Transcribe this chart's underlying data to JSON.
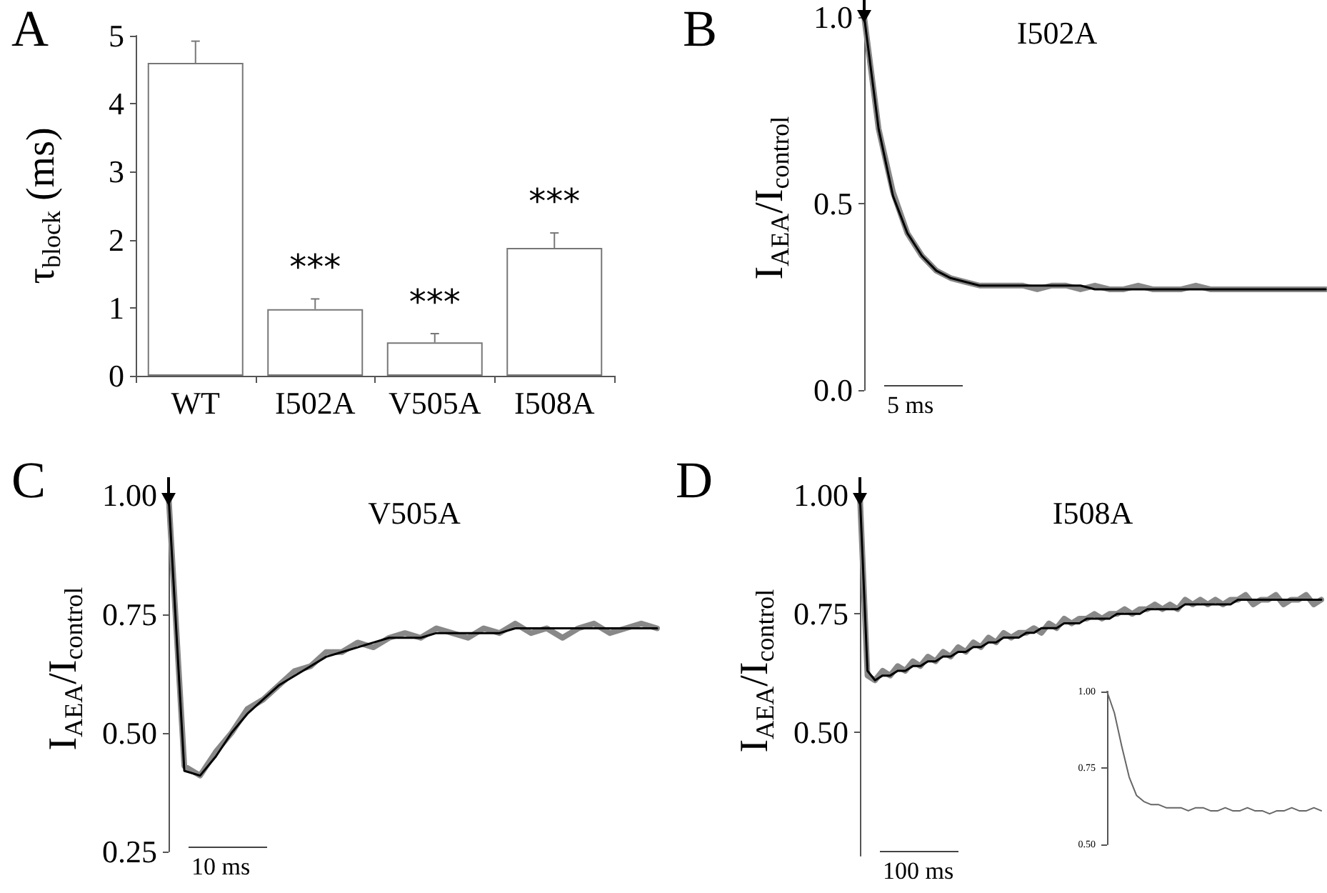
{
  "chart_data": [
    {
      "type": "bar",
      "ylabel": "τ$_{block}$ (ms)",
      "categories": [
        "WT",
        "I502A",
        "V505A",
        "I508A"
      ],
      "values": [
        4.6,
        0.98,
        0.49,
        1.88
      ],
      "colors": [
        "#ffffff",
        "#ffffff",
        "#ffffff",
        "#ffffff"
      ],
      "errors": [
        [
          4.6,
          4.92
        ],
        [
          0.98,
          1.13
        ],
        [
          0.49,
          0.62
        ],
        [
          1.88,
          2.1
        ]
      ],
      "ylim": [
        0,
        5
      ],
      "yticks": [
        0,
        1,
        2,
        3,
        4,
        5
      ],
      "annotations": [
        "A",
        "***",
        "***",
        "***"
      ]
    },
    {
      "type": "line",
      "title": "I502A",
      "ylabel": "I$_{AEA}$/I$_{control}$",
      "marker": "none",
      "tick_labels": "y",
      "categories": [
        null,
        null,
        null,
        null,
        null,
        null,
        null,
        null,
        null,
        null,
        null,
        null,
        null,
        null,
        null,
        null,
        null,
        null,
        null,
        null,
        null,
        null,
        null,
        null,
        null,
        null,
        null,
        null,
        null,
        null,
        null,
        null,
        null
      ],
      "series": [
        {
          "color": "#888888",
          "values": [
            1.0,
            0.7,
            0.53,
            0.42,
            0.36,
            0.32,
            0.3,
            0.29,
            0.28,
            0.28,
            0.28,
            0.28,
            0.27,
            0.28,
            0.28,
            0.27,
            0.28,
            0.27,
            0.27,
            0.28,
            0.27,
            0.27,
            0.27,
            0.28,
            0.27,
            0.27,
            0.27,
            0.27,
            0.27,
            0.27,
            0.27,
            0.27,
            0.27
          ]
        },
        {
          "color": "#000000",
          "values": [
            1.0,
            0.7,
            0.52,
            0.42,
            0.36,
            0.32,
            0.3,
            0.29,
            0.28,
            0.28,
            0.28,
            0.28,
            0.28,
            0.28,
            0.28,
            0.28,
            0.27,
            0.27,
            0.27,
            0.27,
            0.27,
            0.27,
            0.27,
            0.27,
            0.27,
            0.27,
            0.27,
            0.27,
            0.27,
            0.27,
            0.27,
            0.27,
            0.27
          ]
        }
      ],
      "ylim": [
        0,
        1.03
      ],
      "yticks": [
        {
          "value": 0,
          "label": "0.0"
        },
        {
          "value": 0.5,
          "label": "0.5"
        },
        {
          "value": 1,
          "label": "1.0"
        }
      ],
      "annotations": [
        "B",
        "5 ms"
      ]
    },
    {
      "type": "line",
      "title": "V505A",
      "ylabel": "I$_{AEA}$/I$_{control}$",
      "marker": "none",
      "tick_labels": "y",
      "categories": [
        null,
        null,
        null,
        null,
        null,
        null,
        null,
        null,
        null,
        null,
        null,
        null,
        null,
        null,
        null,
        null,
        null,
        null,
        null,
        null,
        null,
        null,
        null,
        null,
        null,
        null,
        null,
        null,
        null,
        null,
        null,
        null
      ],
      "series": [
        {
          "color": "#888888",
          "values": [
            1.0,
            0.43,
            0.41,
            0.46,
            0.5,
            0.55,
            0.57,
            0.6,
            0.63,
            0.64,
            0.67,
            0.67,
            0.69,
            0.68,
            0.7,
            0.71,
            0.7,
            0.72,
            0.71,
            0.7,
            0.72,
            0.71,
            0.73,
            0.71,
            0.72,
            0.7,
            0.72,
            0.73,
            0.71,
            0.72,
            0.73,
            0.72
          ]
        },
        {
          "color": "#000000",
          "values": [
            1.0,
            0.42,
            0.41,
            0.45,
            0.5,
            0.54,
            0.57,
            0.6,
            0.62,
            0.64,
            0.66,
            0.67,
            0.68,
            0.69,
            0.7,
            0.7,
            0.7,
            0.71,
            0.71,
            0.71,
            0.71,
            0.71,
            0.72,
            0.72,
            0.72,
            0.72,
            0.72,
            0.72,
            0.72,
            0.72,
            0.72,
            0.72
          ]
        }
      ],
      "ylim": [
        0.25,
        1.02
      ],
      "yticks": [
        {
          "value": 0.25,
          "label": "0.25"
        },
        {
          "value": 0.5,
          "label": "0.50"
        },
        {
          "value": 0.75,
          "label": "0.75"
        },
        {
          "value": 1,
          "label": "1.00"
        }
      ],
      "annotations": [
        "C",
        "10 ms"
      ]
    },
    {
      "type": "line",
      "title": "I508A",
      "ylabel": "I$_{AEA}$/I$_{control}$",
      "marker": "none",
      "tick_labels": "y",
      "categories": [
        null,
        null,
        null,
        null,
        null,
        null,
        null,
        null,
        null,
        null,
        null,
        null,
        null,
        null,
        null,
        null,
        null,
        null,
        null,
        null,
        null,
        null,
        null,
        null,
        null,
        null,
        null,
        null,
        null,
        null,
        null,
        null,
        null,
        null,
        null,
        null,
        null,
        null,
        null,
        null,
        null,
        null,
        null,
        null,
        null,
        null,
        null,
        null,
        null,
        null,
        null,
        null,
        null,
        null,
        null,
        null,
        null,
        null,
        null,
        null,
        null,
        null
      ],
      "series": [
        {
          "color": "#888888",
          "values": [
            1.0,
            0.62,
            0.61,
            0.63,
            0.62,
            0.64,
            0.63,
            0.65,
            0.64,
            0.66,
            0.65,
            0.67,
            0.66,
            0.68,
            0.67,
            0.69,
            0.68,
            0.7,
            0.69,
            0.71,
            0.7,
            0.71,
            0.71,
            0.72,
            0.71,
            0.73,
            0.72,
            0.74,
            0.73,
            0.74,
            0.74,
            0.75,
            0.74,
            0.75,
            0.75,
            0.76,
            0.75,
            0.76,
            0.76,
            0.77,
            0.76,
            0.77,
            0.76,
            0.78,
            0.77,
            0.78,
            0.77,
            0.78,
            0.77,
            0.78,
            0.78,
            0.79,
            0.77,
            0.78,
            0.78,
            0.79,
            0.77,
            0.78,
            0.78,
            0.79,
            0.77,
            0.78
          ]
        },
        {
          "color": "#000000",
          "values": [
            1.0,
            0.63,
            0.61,
            0.62,
            0.62,
            0.63,
            0.63,
            0.64,
            0.64,
            0.65,
            0.65,
            0.66,
            0.66,
            0.67,
            0.67,
            0.68,
            0.68,
            0.69,
            0.69,
            0.7,
            0.7,
            0.7,
            0.71,
            0.71,
            0.72,
            0.72,
            0.72,
            0.73,
            0.73,
            0.73,
            0.74,
            0.74,
            0.74,
            0.74,
            0.75,
            0.75,
            0.75,
            0.75,
            0.76,
            0.76,
            0.76,
            0.76,
            0.76,
            0.77,
            0.77,
            0.77,
            0.77,
            0.77,
            0.77,
            0.77,
            0.78,
            0.78,
            0.78,
            0.78,
            0.78,
            0.78,
            0.78,
            0.78,
            0.78,
            0.78,
            0.78,
            0.78
          ]
        }
      ],
      "ylim": [
        0.24,
        1.02
      ],
      "yticks": [
        {
          "value": 0.5,
          "label": "0.50"
        },
        {
          "value": 0.75,
          "label": "0.75"
        },
        {
          "value": 1,
          "label": "1.00"
        }
      ],
      "annotations": [
        "D",
        "100 ms"
      ]
    },
    {
      "type": "line",
      "marker": "none",
      "tick_labels": "y",
      "categories": [
        null,
        null,
        null,
        null,
        null,
        null,
        null,
        null,
        null,
        null,
        null,
        null,
        null,
        null,
        null,
        null,
        null,
        null,
        null,
        null,
        null,
        null,
        null,
        null,
        null,
        null,
        null,
        null,
        null,
        null
      ],
      "series": [
        {
          "color": "#666666",
          "values": [
            1.0,
            0.93,
            0.82,
            0.72,
            0.66,
            0.64,
            0.63,
            0.63,
            0.62,
            0.62,
            0.62,
            0.61,
            0.62,
            0.62,
            0.61,
            0.61,
            0.62,
            0.61,
            0.61,
            0.62,
            0.61,
            0.61,
            0.6,
            0.61,
            0.61,
            0.62,
            0.61,
            0.61,
            0.62,
            0.61
          ]
        }
      ],
      "ylim": [
        0.5,
        1.0
      ],
      "yticks": [
        {
          "value": 0.5,
          "label": "0.50"
        },
        {
          "value": 0.75,
          "label": "0.75"
        },
        {
          "value": 1,
          "label": "1.00"
        }
      ]
    }
  ]
}
